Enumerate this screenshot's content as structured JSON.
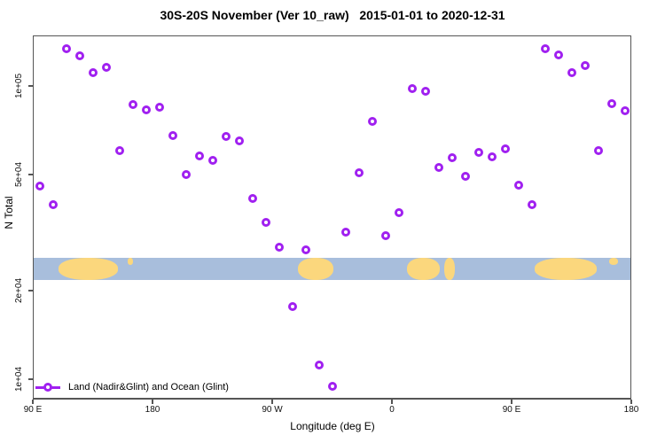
{
  "title": "30S-20S November (Ver 10_raw)   2015-01-01 to 2020-12-31",
  "colors": {
    "marker": "#A020F0",
    "ocean": "#A8BEDC",
    "land": "#FBD77D",
    "axis": "#555555"
  },
  "legend": {
    "label": "Land (Nadir&Glint) and Ocean (Glint)"
  },
  "axes": {
    "x": {
      "title": "Longitude (deg E)",
      "ticks": [
        {
          "lon": 90,
          "label": "90 E"
        },
        {
          "lon": 180,
          "label": "180"
        },
        {
          "lon": 270,
          "label": "90 W"
        },
        {
          "lon": 360,
          "label": "0"
        },
        {
          "lon": 450,
          "label": "90 E"
        },
        {
          "lon": 540,
          "label": "180"
        }
      ]
    },
    "y": {
      "title": "N Total",
      "scale": "log",
      "ticks": [
        {
          "value": 10000,
          "label": "1e+04"
        },
        {
          "value": 20000,
          "label": "2e+04"
        },
        {
          "value": 50000,
          "label": "5e+04"
        },
        {
          "value": 100000,
          "label": "1e+05"
        }
      ]
    }
  },
  "chart_data": {
    "type": "scatter",
    "title": "30S-20S November (Ver 10_raw)   2015-01-01 to 2020-12-31",
    "xlabel": "Longitude (deg E)",
    "ylabel": "N Total",
    "xlim": [
      90,
      540
    ],
    "ylim_log": [
      8500,
      150000
    ],
    "series_name": "Land (Nadir&Glint) and Ocean (Glint)",
    "x_lon_deg": [
      95,
      105,
      115,
      125,
      135,
      145,
      155,
      165,
      175,
      185,
      195,
      205,
      215,
      225,
      235,
      245,
      255,
      265,
      275,
      285,
      295,
      305,
      315,
      325,
      335,
      345,
      355,
      365,
      375,
      385,
      395,
      405,
      415,
      425,
      435,
      445,
      455,
      465,
      475,
      485,
      495,
      505,
      515,
      525,
      535
    ],
    "values": [
      45600,
      39400,
      134000,
      127000,
      111000,
      116000,
      60200,
      86400,
      82900,
      84600,
      67700,
      49900,
      57700,
      55700,
      67300,
      65000,
      41300,
      34200,
      28200,
      17700,
      27600,
      11200,
      9460,
      31700,
      50600,
      75700,
      30900,
      37000,
      97900,
      95900,
      52700,
      56900,
      49200,
      59300,
      57300,
      61000,
      45900,
      39400,
      134000,
      128000,
      111000,
      117000,
      60200,
      86800,
      82400
    ],
    "map_band": {
      "description": "land/ocean strip for 30S-20S drawn across plot near y=2.3e4",
      "ocean_lon": [
        91,
        538
      ],
      "land_segments": [
        {
          "from": 109,
          "to": 154,
          "part": "full"
        },
        {
          "from": 161,
          "to": 165,
          "part": "top"
        },
        {
          "from": 289,
          "to": 316,
          "part": "full"
        },
        {
          "from": 371,
          "to": 396,
          "part": "full"
        },
        {
          "from": 399,
          "to": 407,
          "part": "full"
        },
        {
          "from": 467,
          "to": 514,
          "part": "full"
        },
        {
          "from": 523,
          "to": 530,
          "part": "top"
        }
      ]
    }
  }
}
